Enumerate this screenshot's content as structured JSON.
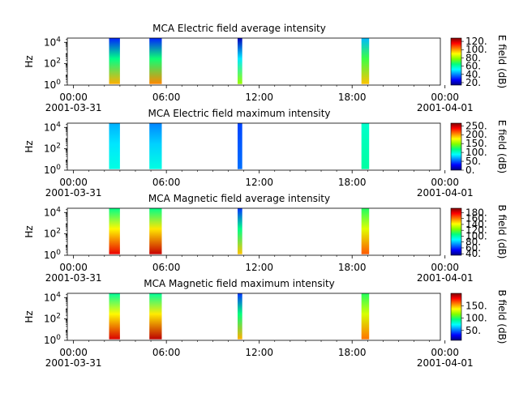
{
  "colormap": [
    "#00007f",
    "#0000ff",
    "#0080ff",
    "#00ffff",
    "#00ff80",
    "#80ff00",
    "#ffff00",
    "#ff8000",
    "#ff0000",
    "#7f0000"
  ],
  "chart_data": [
    {
      "type": "heatmap",
      "title": "MCA  Electric field average intensity",
      "ylabel": "Hz",
      "colorbar_label": "E field (dB)",
      "colorbar_range": [
        14,
        128
      ],
      "colorbar_ticks": [
        20,
        40,
        60,
        80,
        100,
        120
      ],
      "colorbar_tick_labels": [
        "20.",
        "40.",
        "60.",
        "80.",
        "100.",
        "120."
      ],
      "y_scale": "log",
      "y_range_exp": [
        0,
        4.4
      ],
      "y_ticks_exp": [
        0,
        2,
        4
      ],
      "x_range_hours": [
        -0.4,
        23.7
      ],
      "x_ticks": [
        {
          "hour": 0,
          "time": "00:00",
          "date": "2001-03-31"
        },
        {
          "hour": 6,
          "time": "06:00",
          "date": ""
        },
        {
          "hour": 12,
          "time": "12:00",
          "date": ""
        },
        {
          "hour": 18,
          "time": "18:00",
          "date": ""
        },
        {
          "hour": 24,
          "time": "00:00",
          "date": "2001-04-01"
        }
      ],
      "bursts": [
        {
          "start_hour": 2.3,
          "end_hour": 3.0,
          "low_db": 98,
          "high_db": 30
        },
        {
          "start_hour": 4.9,
          "end_hour": 5.7,
          "low_db": 102,
          "high_db": 30
        },
        {
          "start_hour": 10.6,
          "end_hour": 10.9,
          "low_db": 80,
          "high_db": 20
        },
        {
          "start_hour": 18.6,
          "end_hour": 19.1,
          "low_db": 96,
          "high_db": 45
        }
      ]
    },
    {
      "type": "heatmap",
      "title": "MCA  Electric field maximum intensity",
      "ylabel": "Hz",
      "colorbar_label": "E field (dB)",
      "colorbar_range": [
        0,
        265
      ],
      "colorbar_ticks": [
        0,
        50,
        100,
        150,
        200,
        250
      ],
      "colorbar_tick_labels": [
        "0.",
        "50.",
        "100.",
        "150.",
        "200.",
        "250."
      ],
      "y_scale": "log",
      "y_range_exp": [
        0,
        4.4
      ],
      "y_ticks_exp": [
        0,
        2,
        4
      ],
      "x_range_hours": [
        -0.4,
        23.7
      ],
      "x_ticks": [
        {
          "hour": 0,
          "time": "00:00",
          "date": "2001-03-31"
        },
        {
          "hour": 6,
          "time": "06:00",
          "date": ""
        },
        {
          "hour": 12,
          "time": "12:00",
          "date": ""
        },
        {
          "hour": 18,
          "time": "18:00",
          "date": ""
        },
        {
          "hour": 24,
          "time": "00:00",
          "date": "2001-04-01"
        }
      ],
      "bursts": [
        {
          "start_hour": 2.3,
          "end_hour": 3.0,
          "low_db": 95,
          "high_db": 70
        },
        {
          "start_hour": 4.9,
          "end_hour": 5.7,
          "low_db": 95,
          "high_db": 60
        },
        {
          "start_hour": 10.6,
          "end_hour": 10.9,
          "low_db": 55,
          "high_db": 45
        },
        {
          "start_hour": 18.6,
          "end_hour": 19.1,
          "low_db": 110,
          "high_db": 100
        }
      ]
    },
    {
      "type": "heatmap",
      "title": "MCA  Magnetic field average intensity",
      "ylabel": "Hz",
      "colorbar_label": "B field (dB)",
      "colorbar_range": [
        35,
        195
      ],
      "colorbar_ticks": [
        40,
        60,
        80,
        100,
        120,
        140,
        160,
        180
      ],
      "colorbar_tick_labels": [
        "40.",
        "60.",
        "80.",
        "100.",
        "120.",
        "140.",
        "160.",
        "180."
      ],
      "y_scale": "log",
      "y_range_exp": [
        0,
        4.4
      ],
      "y_ticks_exp": [
        0,
        2,
        4
      ],
      "x_range_hours": [
        -0.4,
        23.7
      ],
      "x_ticks": [
        {
          "hour": 0,
          "time": "00:00",
          "date": "2001-03-31"
        },
        {
          "hour": 6,
          "time": "06:00",
          "date": ""
        },
        {
          "hour": 12,
          "time": "12:00",
          "date": ""
        },
        {
          "hour": 18,
          "time": "18:00",
          "date": ""
        },
        {
          "hour": 24,
          "time": "00:00",
          "date": "2001-04-01"
        }
      ],
      "bursts": [
        {
          "start_hour": 2.3,
          "end_hour": 3.0,
          "low_db": 180,
          "high_db": 105
        },
        {
          "start_hour": 4.9,
          "end_hour": 5.7,
          "low_db": 185,
          "high_db": 105
        },
        {
          "start_hour": 10.6,
          "end_hour": 10.9,
          "low_db": 150,
          "high_db": 60
        },
        {
          "start_hour": 18.6,
          "end_hour": 19.1,
          "low_db": 165,
          "high_db": 110
        }
      ]
    },
    {
      "type": "heatmap",
      "title": "MCA  Magnetic field maximum intensity",
      "ylabel": "Hz",
      "colorbar_label": "B field (dB)",
      "colorbar_range": [
        10,
        200
      ],
      "colorbar_ticks": [
        50,
        100,
        150
      ],
      "colorbar_tick_labels": [
        "50.",
        "100.",
        "150."
      ],
      "y_scale": "log",
      "y_range_exp": [
        0,
        4.4
      ],
      "y_ticks_exp": [
        0,
        2,
        4
      ],
      "x_range_hours": [
        -0.4,
        23.7
      ],
      "x_ticks": [
        {
          "hour": 0,
          "time": "00:00",
          "date": "2001-03-31"
        },
        {
          "hour": 6,
          "time": "06:00",
          "date": ""
        },
        {
          "hour": 12,
          "time": "12:00",
          "date": ""
        },
        {
          "hour": 18,
          "time": "18:00",
          "date": ""
        },
        {
          "hour": 24,
          "time": "00:00",
          "date": "2001-04-01"
        }
      ],
      "bursts": [
        {
          "start_hour": 2.3,
          "end_hour": 3.0,
          "low_db": 185,
          "high_db": 90
        },
        {
          "start_hour": 4.9,
          "end_hour": 5.7,
          "low_db": 190,
          "high_db": 90
        },
        {
          "start_hour": 10.6,
          "end_hour": 10.9,
          "low_db": 150,
          "high_db": 40
        },
        {
          "start_hour": 18.6,
          "end_hour": 19.1,
          "low_db": 160,
          "high_db": 100
        }
      ]
    }
  ]
}
